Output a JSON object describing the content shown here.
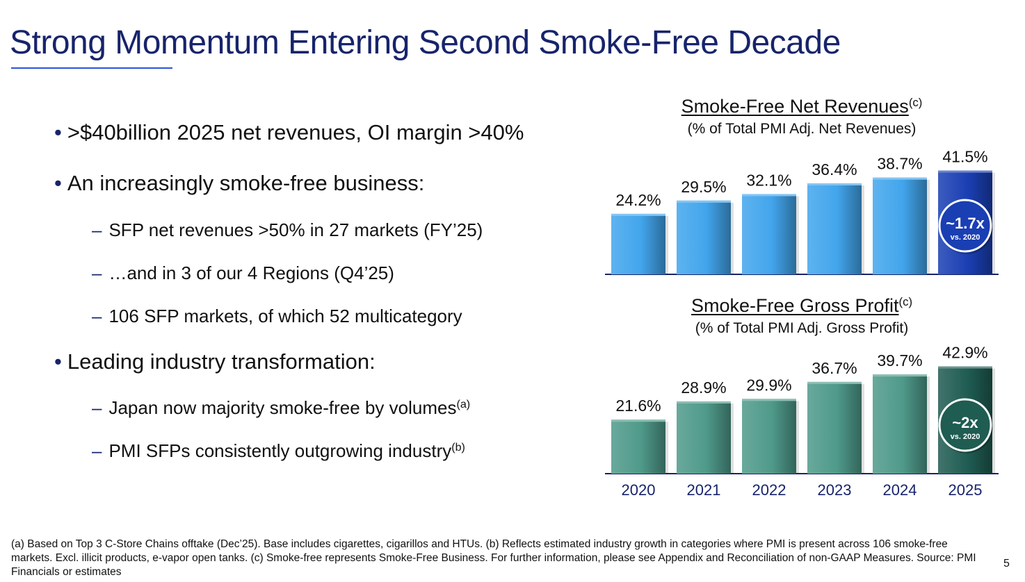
{
  "title": "Strong Momentum Entering Second Smoke-Free Decade",
  "bullets": {
    "b1": ">$40billion 2025 net revenues, OI margin >40%",
    "b2": "An increasingly smoke-free business:",
    "b2a": "SFP net revenues >50% in 27 markets (FY’25)",
    "b2b": "…and in 3 of our 4 Regions (Q4’25)",
    "b2c": "106 SFP markets, of which 52 multicategory",
    "b3": "Leading industry transformation:",
    "b3a": "Japan now majority smoke-free by volumes",
    "b3a_sup": "(a)",
    "b3b": "PMI SFPs consistently outgrowing industry",
    "b3b_sup": "(b)"
  },
  "chart_data": [
    {
      "type": "bar",
      "title": "Smoke-Free Net Revenues",
      "title_sup": "(c)",
      "subtitle": "(% of Total PMI Adj. Net Revenues)",
      "categories": [
        "2020",
        "2021",
        "2022",
        "2023",
        "2024",
        "2025"
      ],
      "values": [
        24.2,
        29.5,
        32.1,
        36.4,
        38.7,
        41.5
      ],
      "value_labels": [
        "24.2%",
        "29.5%",
        "32.1%",
        "36.4%",
        "38.7%",
        "41.5%"
      ],
      "ylim": [
        0,
        50
      ],
      "bar_color": "#42a5ec",
      "highlight_color": "#1a3fb3",
      "badge": {
        "main": "~1.7x",
        "sub": "vs. 2020"
      }
    },
    {
      "type": "bar",
      "title": "Smoke-Free Gross Profit",
      "title_sup": "(c)",
      "subtitle": "(% of Total PMI Adj. Gross Profit)",
      "categories": [
        "2020",
        "2021",
        "2022",
        "2023",
        "2024",
        "2025"
      ],
      "values": [
        21.6,
        28.9,
        29.9,
        36.7,
        39.7,
        42.9
      ],
      "value_labels": [
        "21.6%",
        "28.9%",
        "29.9%",
        "36.7%",
        "39.7%",
        "42.9%"
      ],
      "ylim": [
        0,
        50
      ],
      "bar_color": "#4f9a8a",
      "highlight_color": "#1f5c52",
      "badge": {
        "main": "~2x",
        "sub": "vs. 2020"
      }
    }
  ],
  "footnote": "(a) Based on Top 3 C-Store Chains offtake (Dec’25). Base includes cigarettes, cigarillos and HTUs. (b) Reflects estimated industry growth in categories where PMI is present across 106 smoke-free markets. Excl. illicit products, e-vapor open tanks. (c) Smoke-free represents Smoke-Free Business. For further information, please see Appendix and Reconciliation of non-GAAP Measures. Source: PMI Financials or estimates",
  "page_number": "5",
  "colors": {
    "title": "#17246b",
    "rule": "#2a55d6",
    "axis": "#17246b"
  }
}
